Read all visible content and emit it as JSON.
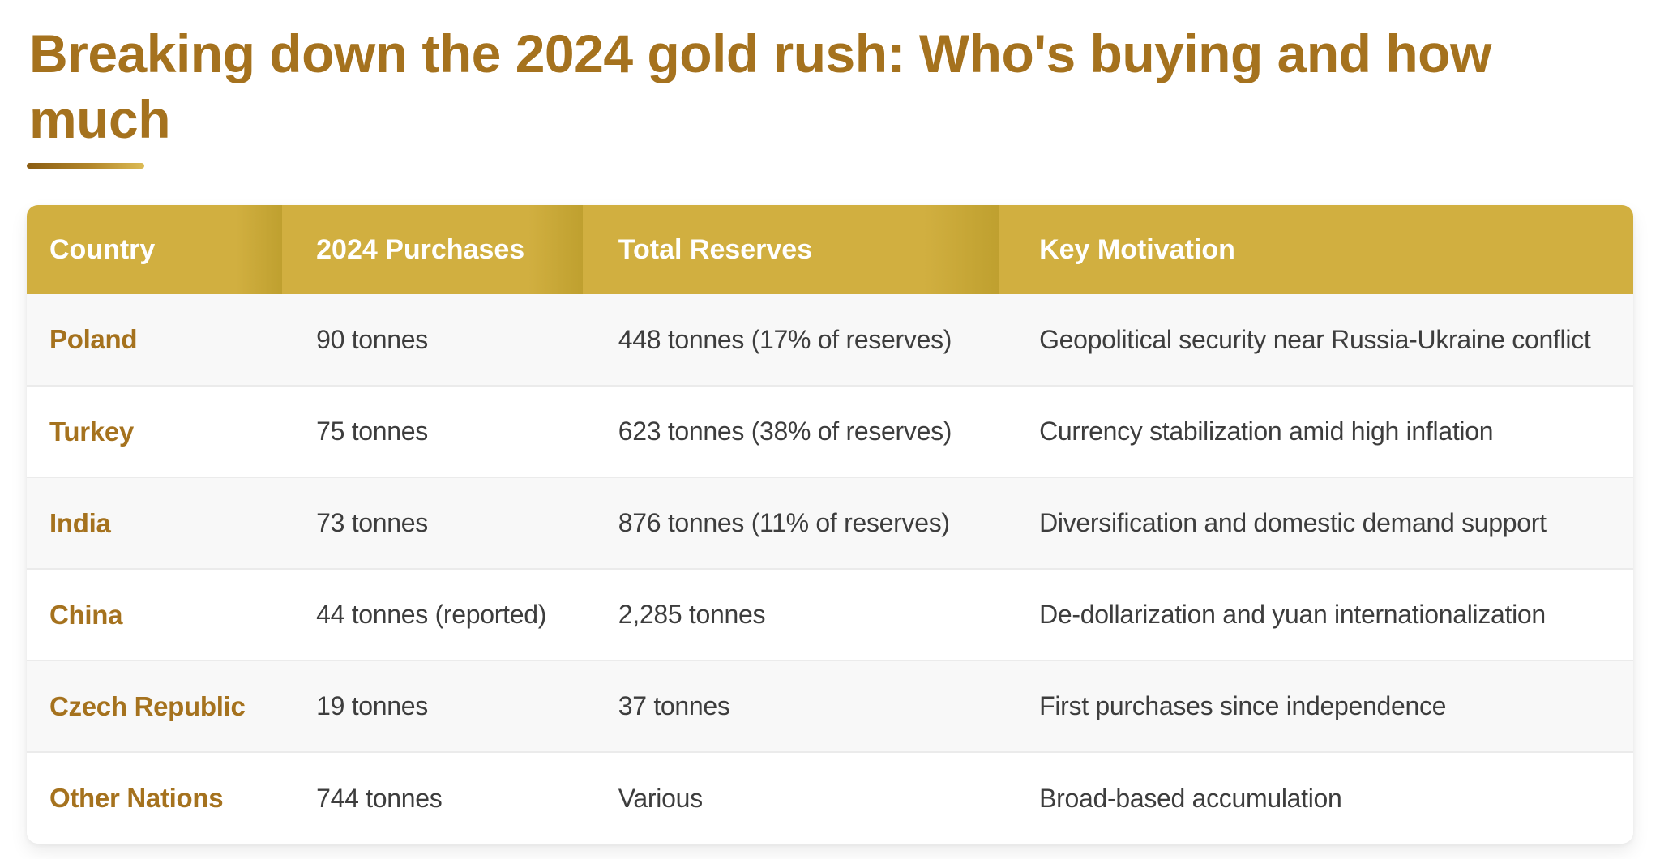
{
  "colors": {
    "title_brown": "#a5721e",
    "header_gold": "#d1af40",
    "header_gold_dark": "#bfa02f",
    "row_alt_gray": "#f8f8f8",
    "row_separator": "#ebebeb",
    "body_text": "#3d3d3d",
    "underline_gradient_start": "#8a5c12",
    "underline_gradient_end": "#dcbb55"
  },
  "header": {
    "title_line1": "Breaking down the 2024 gold rush: Who's buying and how",
    "title_line2": "much"
  },
  "chart_data": {
    "type": "table",
    "title": "Breaking down the 2024 gold rush: Who's buying and how much",
    "columns": [
      "Country",
      "2024 Purchases",
      "Total Reserves",
      "Key Motivation"
    ],
    "rows": [
      [
        "Poland",
        "90 tonnes",
        "448 tonnes (17% of reserves)",
        "Geopolitical security near Russia-Ukraine conflict"
      ],
      [
        "Turkey",
        "75 tonnes",
        "623 tonnes (38% of reserves)",
        "Currency stabilization amid high inflation"
      ],
      [
        "India",
        "73 tonnes",
        "876 tonnes (11% of reserves)",
        "Diversification and domestic demand support"
      ],
      [
        "China",
        "44 tonnes (reported)",
        "2,285 tonnes",
        "De-dollarization and yuan internationalization"
      ],
      [
        "Czech Republic",
        "19 tonnes",
        "37 tonnes",
        "First purchases since independence"
      ],
      [
        "Other Nations",
        "744 tonnes",
        "Various",
        "Broad-based accumulation"
      ]
    ],
    "purchases_tonnes": {
      "Poland": 90,
      "Turkey": 75,
      "India": 73,
      "China": 44,
      "Czech Republic": 19,
      "Other Nations": 744
    },
    "total_reserves_tonnes": {
      "Poland": 448,
      "Turkey": 623,
      "India": 876,
      "China": 2285,
      "Czech Republic": 37
    },
    "reserves_share_percent": {
      "Poland": 17,
      "Turkey": 38,
      "India": 11
    }
  }
}
